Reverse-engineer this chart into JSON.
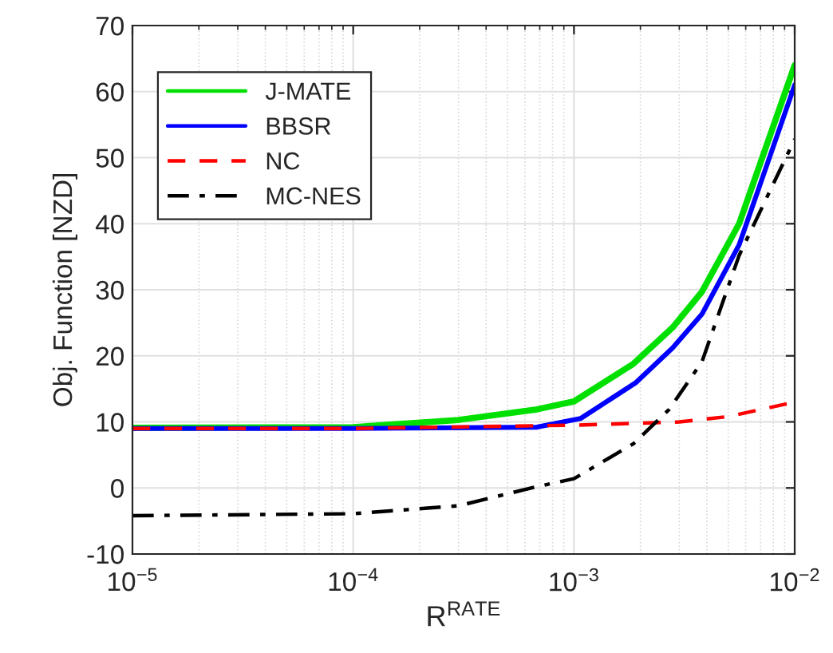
{
  "chart_data": {
    "type": "line",
    "xlabel": "R$^{RATE}$",
    "ylabel": "Obj. Function [NZD]",
    "log": "x",
    "xlim": [
      1e-05,
      0.01
    ],
    "xticks": [
      {
        "value": 1e-05,
        "label": "10$^{−5}$"
      },
      {
        "value": 0.0001,
        "label": "10$^{−4}$"
      },
      {
        "value": 0.001,
        "label": "10$^{−3}$"
      },
      {
        "value": 0.01,
        "label": "10$^{−2}$"
      }
    ],
    "ylim": [
      -10,
      70
    ],
    "yticks": [
      -10,
      0,
      10,
      20,
      30,
      40,
      50,
      60,
      70
    ],
    "grid": true,
    "legend": "top left",
    "series": [
      {
        "name": "J-MATE",
        "color": "#00e000",
        "line_style": "solid",
        "x": [
          1e-05,
          0.0001,
          0.0003,
          0.00068,
          0.001,
          0.00186,
          0.0028,
          0.0038,
          0.0056,
          0.01
        ],
        "values": [
          9.1,
          9.2,
          10.3,
          11.9,
          13.1,
          18.8,
          24.3,
          29.7,
          40,
          64
        ]
      },
      {
        "name": "BBSR",
        "color": "#0000ff",
        "line_style": "solid",
        "x": [
          1e-05,
          0.0001,
          0.00068,
          0.00107,
          0.0019,
          0.0028,
          0.0038,
          0.0056,
          0.01
        ],
        "values": [
          9,
          9,
          9.2,
          10.5,
          15.9,
          21.2,
          26.3,
          36.8,
          61
        ]
      },
      {
        "name": "NC",
        "color": "#ff0000",
        "line_style": "dashed",
        "x": [
          1e-05,
          0.0001,
          0.001,
          0.003,
          0.005,
          0.01
        ],
        "values": [
          9,
          9,
          9.5,
          10,
          10.8,
          13
        ]
      },
      {
        "name": "MC-NES",
        "color": "#000000",
        "line_style": "dashdot",
        "x": [
          1e-05,
          0.0001,
          0.0003,
          0.00068,
          0.001,
          0.00186,
          0.0027,
          0.0038,
          0.0056,
          0.01
        ],
        "values": [
          -4.2,
          -3.9,
          -2.7,
          0.2,
          1.4,
          6.7,
          11.9,
          19.1,
          35.2,
          52.8
        ]
      }
    ]
  }
}
